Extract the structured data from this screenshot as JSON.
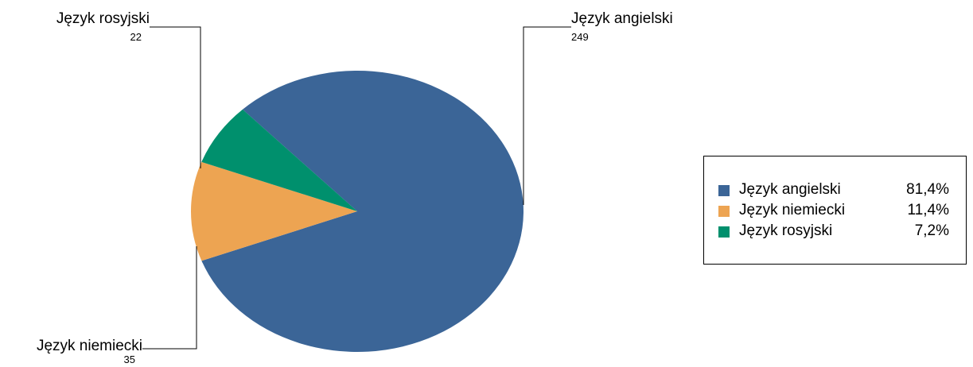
{
  "chart_data": {
    "type": "pie",
    "title": "",
    "slices": [
      {
        "label": "Język angielski",
        "value": 249,
        "value_label": "249",
        "percent_label": "81,4%",
        "color": "#3b6597"
      },
      {
        "label": "Język niemiecki",
        "value": 35,
        "value_label": "35",
        "percent_label": "11,4%",
        "color": "#eda452"
      },
      {
        "label": "Język rosyjski",
        "value": 22,
        "value_label": "22",
        "percent_label": "7,2%",
        "color": "#00906d"
      }
    ],
    "legend": {
      "position": "right"
    }
  }
}
